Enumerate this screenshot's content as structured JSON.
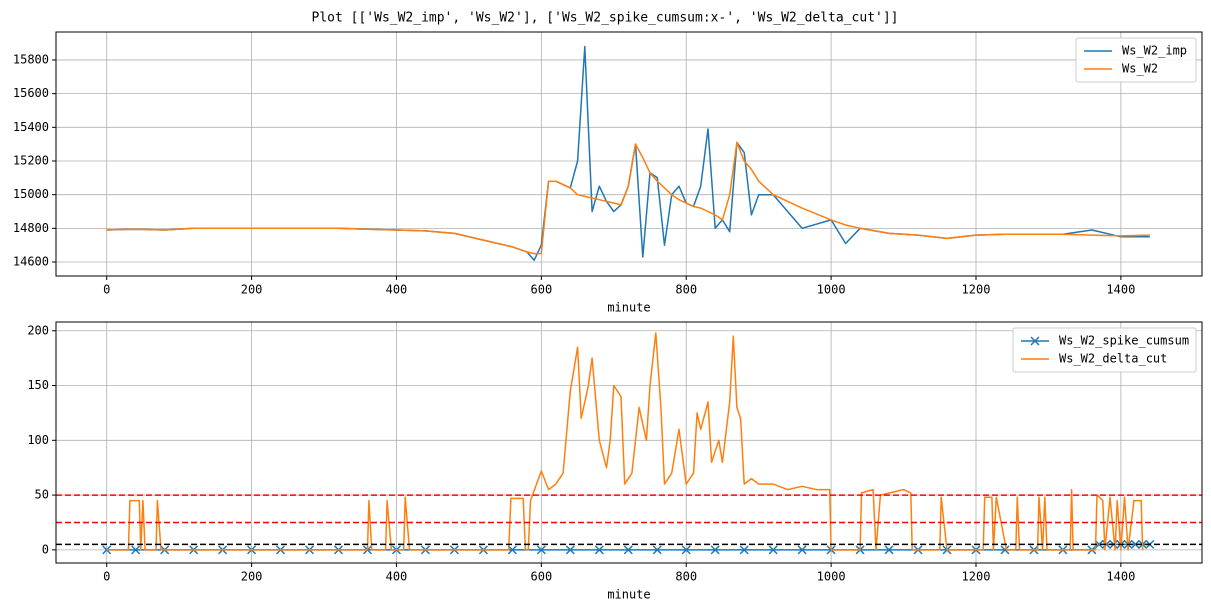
{
  "chart_data": [
    {
      "type": "line",
      "title": "Plot [['Ws_W2_imp', 'Ws_W2'], ['Ws_W2_spike_cumsum:x-', 'Ws_W2_delta_cut']]",
      "xlabel": "minute",
      "xlim": [
        -70,
        1512
      ],
      "xticks": [
        0,
        200,
        400,
        600,
        800,
        1000,
        1200,
        1400
      ],
      "ylim": [
        14517,
        15966
      ],
      "yticks": [
        14600,
        14800,
        15000,
        15200,
        15400,
        15600,
        15800
      ],
      "grid": true,
      "legend": "upper right",
      "x": [
        0,
        40,
        80,
        120,
        160,
        200,
        240,
        280,
        320,
        360,
        400,
        440,
        480,
        520,
        560,
        580,
        590,
        600,
        610,
        620,
        630,
        640,
        650,
        660,
        670,
        680,
        690,
        700,
        710,
        720,
        730,
        740,
        750,
        760,
        770,
        780,
        790,
        800,
        810,
        820,
        830,
        840,
        850,
        860,
        870,
        880,
        890,
        900,
        920,
        960,
        1000,
        1020,
        1040,
        1080,
        1120,
        1160,
        1200,
        1240,
        1280,
        1320,
        1360,
        1400,
        1440
      ],
      "series": [
        {
          "name": "Ws_W2_imp",
          "color": "#1f77b4",
          "values": [
            14790,
            14795,
            14790,
            14800,
            14800,
            14800,
            14800,
            14800,
            14800,
            14795,
            14790,
            14785,
            14770,
            14730,
            14690,
            14660,
            14610,
            14700,
            15080,
            15080,
            15060,
            15040,
            15200,
            15880,
            14900,
            15050,
            14960,
            14900,
            14940,
            15050,
            15300,
            14630,
            15130,
            15100,
            14700,
            15000,
            15050,
            14950,
            14930,
            15050,
            15390,
            14800,
            14850,
            14780,
            15310,
            15250,
            14880,
            15000,
            15000,
            14800,
            14850,
            14710,
            14800,
            14770,
            14760,
            14740,
            14760,
            14765,
            14765,
            14765,
            14790,
            14750,
            14750
          ]
        },
        {
          "name": "Ws_W2",
          "color": "#ff7f0e",
          "values": [
            14790,
            14795,
            14790,
            14800,
            14800,
            14800,
            14800,
            14800,
            14800,
            14795,
            14790,
            14785,
            14770,
            14730,
            14690,
            14660,
            14650,
            14650,
            15080,
            15080,
            15060,
            15040,
            15000,
            14990,
            14980,
            14970,
            14960,
            14950,
            14940,
            15050,
            15300,
            15220,
            15130,
            15080,
            15040,
            15000,
            14970,
            14950,
            14930,
            14920,
            14900,
            14880,
            14850,
            15000,
            15310,
            15200,
            15150,
            15080,
            15000,
            14920,
            14850,
            14820,
            14800,
            14770,
            14760,
            14740,
            14760,
            14765,
            14765,
            14765,
            14760,
            14755,
            14760
          ]
        }
      ]
    },
    {
      "type": "line",
      "xlabel": "minute",
      "xlim": [
        -70,
        1512
      ],
      "xticks": [
        0,
        200,
        400,
        600,
        800,
        1000,
        1200,
        1400
      ],
      "ylim": [
        -12,
        208
      ],
      "yticks": [
        0,
        50,
        100,
        150,
        200
      ],
      "grid": true,
      "legend": "upper right",
      "hlines": [
        {
          "y": 50,
          "color": "red"
        },
        {
          "y": 25,
          "color": "red"
        },
        {
          "y": 5,
          "color": "black"
        }
      ],
      "series": [
        {
          "name": "Ws_W2_spike_cumsum",
          "color": "#1f77b4",
          "marker": "x",
          "x": [
            0,
            40,
            80,
            120,
            160,
            200,
            240,
            280,
            320,
            360,
            400,
            440,
            480,
            520,
            560,
            600,
            640,
            680,
            720,
            760,
            800,
            840,
            880,
            920,
            960,
            1000,
            1040,
            1080,
            1120,
            1160,
            1200,
            1240,
            1280,
            1320,
            1360,
            1370,
            1380,
            1390,
            1400,
            1410,
            1420,
            1430,
            1440
          ],
          "values": [
            0,
            0,
            0,
            0,
            0,
            0,
            0,
            0,
            0,
            0,
            0,
            0,
            0,
            0,
            0,
            0,
            0,
            0,
            0,
            0,
            0,
            0,
            0,
            0,
            0,
            0,
            0,
            0,
            0,
            0,
            0,
            0,
            0,
            0,
            0,
            5,
            5,
            5,
            5,
            5,
            5,
            5,
            5
          ]
        },
        {
          "name": "Ws_W2_delta_cut",
          "color": "#ff7f0e",
          "x": [
            0,
            30,
            32,
            45,
            47,
            50,
            53,
            68,
            70,
            75,
            360,
            362,
            366,
            385,
            387,
            393,
            410,
            412,
            418,
            555,
            558,
            575,
            578,
            582,
            585,
            600,
            610,
            620,
            630,
            640,
            650,
            655,
            665,
            670,
            680,
            690,
            695,
            700,
            710,
            715,
            725,
            735,
            745,
            750,
            758,
            765,
            770,
            780,
            790,
            800,
            810,
            815,
            820,
            830,
            835,
            845,
            850,
            860,
            865,
            870,
            875,
            880,
            890,
            900,
            920,
            940,
            960,
            980,
            998,
            1000,
            1040,
            1042,
            1058,
            1062,
            1068,
            1100,
            1110,
            1112,
            1150,
            1152,
            1160,
            1210,
            1212,
            1222,
            1224,
            1228,
            1242,
            1255,
            1257,
            1260,
            1285,
            1287,
            1292,
            1295,
            1298,
            1330,
            1332,
            1334,
            1365,
            1367,
            1375,
            1378,
            1385,
            1392,
            1395,
            1400,
            1405,
            1410,
            1418,
            1428,
            1430
          ],
          "values": [
            0,
            0,
            45,
            45,
            0,
            45,
            0,
            0,
            45,
            0,
            0,
            45,
            0,
            0,
            45,
            0,
            0,
            48,
            0,
            0,
            47,
            47,
            0,
            0,
            45,
            72,
            55,
            60,
            70,
            145,
            185,
            120,
            150,
            175,
            100,
            75,
            100,
            150,
            140,
            60,
            70,
            130,
            100,
            150,
            198,
            130,
            60,
            70,
            110,
            60,
            70,
            125,
            110,
            135,
            80,
            100,
            80,
            135,
            195,
            130,
            120,
            60,
            65,
            60,
            60,
            55,
            58,
            55,
            55,
            0,
            0,
            52,
            55,
            0,
            50,
            55,
            52,
            0,
            0,
            48,
            0,
            0,
            48,
            48,
            0,
            48,
            0,
            0,
            48,
            0,
            0,
            48,
            0,
            48,
            0,
            0,
            55,
            0,
            0,
            50,
            45,
            0,
            48,
            0,
            45,
            0,
            48,
            0,
            45,
            45,
            0
          ]
        }
      ]
    }
  ]
}
